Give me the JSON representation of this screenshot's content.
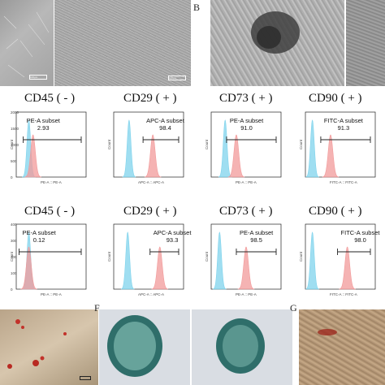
{
  "panel_letters": {
    "b": "B",
    "f": "F",
    "g": "G"
  },
  "scalebars": {
    "a1": "100μm",
    "a2": "100μm"
  },
  "row1": [
    {
      "marker": "CD45 ( - )",
      "subset": "PE-A subset",
      "value": "2.93",
      "xaxis": "PE-A :: PE-A",
      "ylabel": "Count",
      "yticks": [
        "2000",
        "1500",
        "1000",
        "500",
        "0"
      ]
    },
    {
      "marker": "CD29 ( + )",
      "subset": "APC-A subset",
      "value": "98.4",
      "xaxis": "APC-A :: APC-A",
      "ylabel": "Count",
      "yticks": []
    },
    {
      "marker": "CD73 ( + )",
      "subset": "PE-A subset",
      "value": "91.0",
      "xaxis": "PE-A :: PE-A",
      "ylabel": "Count",
      "yticks": []
    },
    {
      "marker": "CD90 ( + )",
      "subset": "FITC-A subset",
      "value": "91.3",
      "xaxis": "FITC-A :: FITC-A",
      "ylabel": "Count",
      "yticks": []
    }
  ],
  "row2": [
    {
      "marker": "CD45 ( - )",
      "subset": "PE-A subset",
      "value": "0.12",
      "xaxis": "PE-A :: PE-A",
      "ylabel": "Count",
      "yticks": [
        "400",
        "300",
        "200",
        "100",
        "0"
      ]
    },
    {
      "marker": "CD29 ( + )",
      "subset": "APC-A subset",
      "value": "93.3",
      "xaxis": "APC-A :: APC-A",
      "ylabel": "Count",
      "yticks": []
    },
    {
      "marker": "CD73 ( + )",
      "subset": "PE-A subset",
      "value": "98.5",
      "xaxis": "PE-A :: PE-A",
      "ylabel": "Count",
      "yticks": []
    },
    {
      "marker": "CD90 ( + )",
      "subset": "FITC-A subset",
      "value": "98.0",
      "xaxis": "FITC-A :: FITC-A",
      "ylabel": "Count",
      "yticks": []
    }
  ],
  "colors": {
    "isotype": "#7fd3ec",
    "stained": "#f29a9a",
    "overlap": "#8a8faa"
  }
}
